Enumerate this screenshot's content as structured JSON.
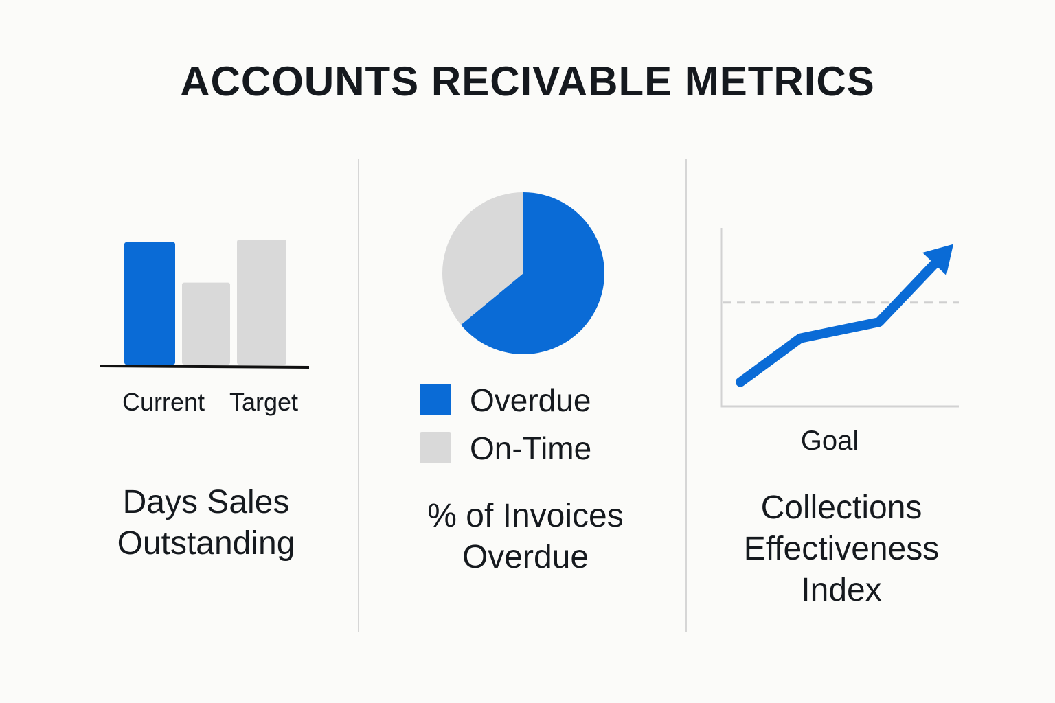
{
  "title": "ACCOUNTS RECIVABLE METRICS",
  "colors": {
    "primary": "#0a6bd6",
    "secondary": "#d9d9d9",
    "text": "#15191e",
    "background": "#fbfbf9"
  },
  "chart_data": [
    {
      "type": "bar",
      "panel_title": "Days Sales Outstanding",
      "categories": [
        "Current",
        "",
        "Target"
      ],
      "tick_labels": [
        "Current",
        "Target"
      ],
      "values": [
        100,
        67,
        102
      ],
      "ylim": [
        0,
        110
      ],
      "xlabel": "",
      "ylabel": "",
      "bar_colors": [
        "#0a6bd6",
        "#d9d9d9",
        "#d9d9d9"
      ],
      "grid": false,
      "legend": false
    },
    {
      "type": "pie",
      "panel_title": "% of Invoices Overdue",
      "slices": [
        {
          "label": "Overdue",
          "value": 64,
          "color": "#0a6bd6"
        },
        {
          "label": "On-Time",
          "value": 36,
          "color": "#d9d9d9"
        }
      ],
      "legend": "bottom"
    },
    {
      "type": "line",
      "panel_title": "Collections Effectiveness Index",
      "x": [
        0,
        1,
        2,
        3
      ],
      "values": [
        0.15,
        0.42,
        0.52,
        1.0
      ],
      "goal": 0.64,
      "goal_label": "Goal",
      "ylim": [
        0,
        1.1
      ],
      "xlabel": "",
      "ylabel": "",
      "trend_arrow": true,
      "grid": false
    }
  ]
}
